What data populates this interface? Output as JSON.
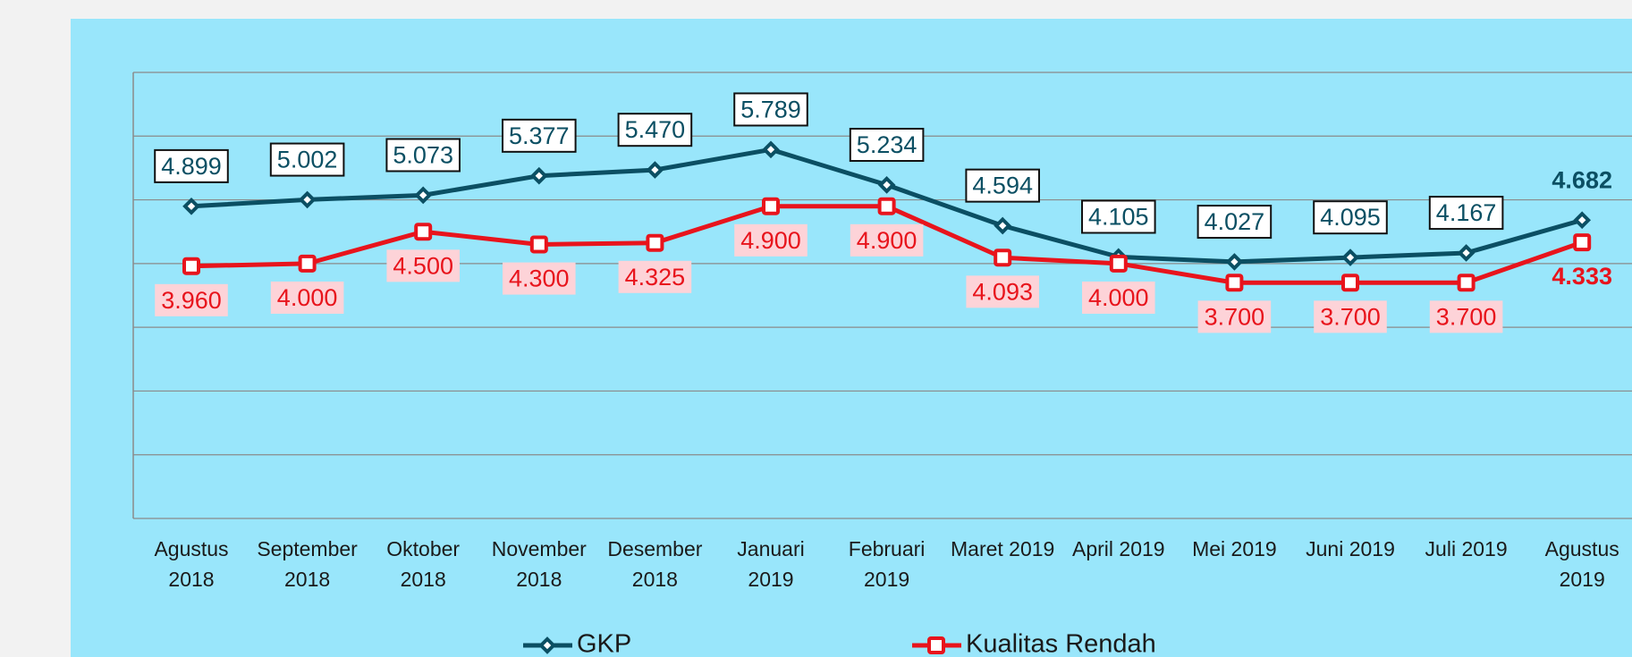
{
  "chart_data": {
    "type": "line",
    "categories": [
      "Agustus 2018",
      "September 2018",
      "Oktober 2018",
      "November 2018",
      "Desember 2018",
      "Januari 2019",
      "Februari 2019",
      "Maret 2019",
      "April 2019",
      "Mei 2019",
      "Juni 2019",
      "Juli 2019",
      "Agustus 2019"
    ],
    "series": [
      {
        "name": "GKP",
        "color": "#0b4f63",
        "values": [
          4899,
          5002,
          5073,
          5377,
          5470,
          5789,
          5234,
          4594,
          4105,
          4027,
          4095,
          4167,
          4682
        ],
        "value_labels": [
          "4.899",
          "5.002",
          "5.073",
          "5.377",
          "5.470",
          "5.789",
          "5.234",
          "4.594",
          "4.105",
          "4.027",
          "4.095",
          "4.167",
          "4.682"
        ]
      },
      {
        "name": "Kualitas Rendah",
        "color": "#e8141c",
        "values": [
          3960,
          4000,
          4500,
          4300,
          4325,
          4900,
          4900,
          4093,
          4000,
          3700,
          3700,
          3700,
          4333
        ],
        "value_labels": [
          "3.960",
          "4.000",
          "4.500",
          "4.300",
          "4.325",
          "4.900",
          "4.900",
          "4.093",
          "4.000",
          "3.700",
          "3.700",
          "3.700",
          "4.333"
        ]
      }
    ],
    "ylim": [
      0,
      7000
    ],
    "yticks": [
      0,
      1000,
      2000,
      3000,
      4000,
      5000,
      6000,
      7000
    ],
    "grid": true,
    "legend": "bottom"
  }
}
